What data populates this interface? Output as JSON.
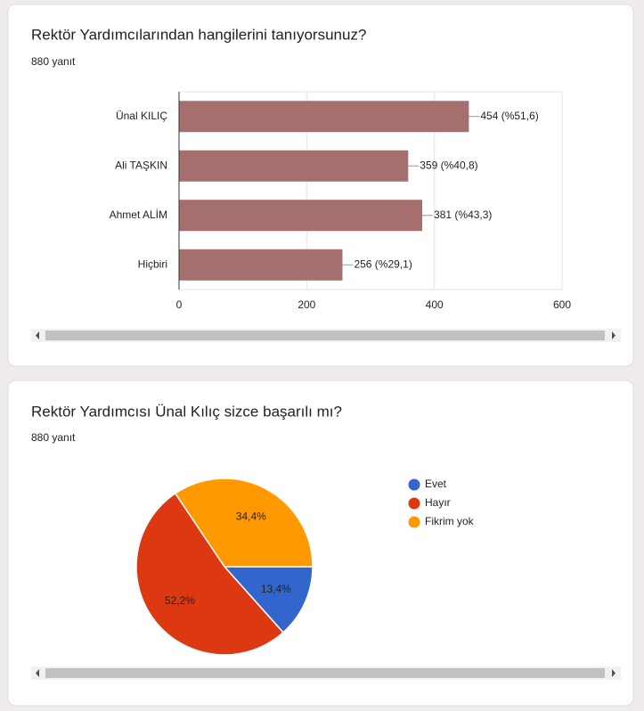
{
  "chart_data": [
    {
      "type": "bar",
      "orientation": "horizontal",
      "title": "Rektör Yardımcılarından hangilerini tanıyorsunuz?",
      "subtitle": "880 yanıt",
      "categories": [
        "Ünal KILIÇ",
        "Ali TAŞKIN",
        "Ahmet ALİM",
        "Hiçbiri"
      ],
      "values": [
        454,
        359,
        381,
        256
      ],
      "value_labels": [
        "454 (%51,6)",
        "359 (%40,8)",
        "381 (%43,3)",
        "256 (%29,1)"
      ],
      "color": "#a46f6c",
      "xlim": [
        0,
        600
      ],
      "xticks": [
        0,
        200,
        400,
        600
      ],
      "grid": true
    },
    {
      "type": "pie",
      "title": "Rektör Yardımcısı Ünal Kılıç sizce başarılı mı?",
      "subtitle": "880 yanıt",
      "categories": [
        "Evet",
        "Hayır",
        "Fikrim yok"
      ],
      "values": [
        13.4,
        52.2,
        34.4
      ],
      "value_labels": [
        "13,4%",
        "52,2%",
        "34,4%"
      ],
      "colors": [
        "#3366cc",
        "#dc3912",
        "#ff9900"
      ],
      "legend": "right"
    }
  ]
}
